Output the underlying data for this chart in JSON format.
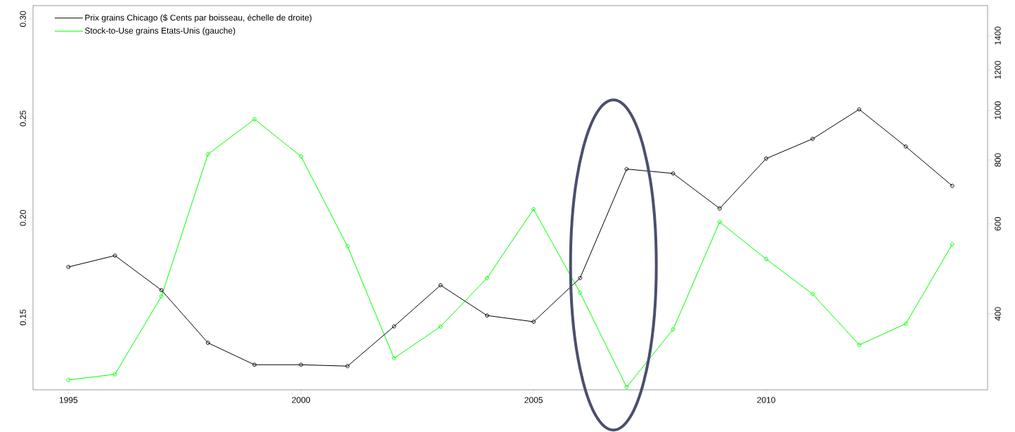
{
  "chart_data": {
    "type": "line",
    "x": [
      1995,
      1996,
      1997,
      1998,
      1999,
      2000,
      2001,
      2002,
      2003,
      2004,
      2005,
      2006,
      2007,
      2008,
      2009,
      2010,
      2011,
      2012,
      2013,
      2014
    ],
    "series": [
      {
        "name": "Prix grains Chicago ($ Cents par boisseau, échelle de droite)",
        "color": "#000000",
        "axis": "y2",
        "values": [
          494,
          520,
          445,
          351,
          318,
          318,
          316,
          378,
          455,
          397,
          386,
          470,
          768,
          753,
          643,
          805,
          880,
          1005,
          850,
          712
        ]
      },
      {
        "name": "Stock-to-Use grains Etats-Unis (gauche)",
        "color": "#00ff00",
        "values": [
          0.1186,
          0.1214,
          0.1606,
          0.232,
          0.2496,
          0.2309,
          0.1857,
          0.1295,
          0.1454,
          0.1698,
          0.2044,
          0.1624,
          0.115,
          0.144,
          0.198,
          0.1793,
          0.1617,
          0.1362,
          0.1468,
          0.1867
        ]
      }
    ],
    "xlim": [
      1994.24,
      2014.76
    ],
    "xticks": [
      1995,
      2000,
      2005,
      2010
    ],
    "ylim": [
      0.1136,
      0.3067
    ],
    "yticks": [
      {
        "value": 0.15,
        "label": "0.15"
      },
      {
        "value": 0.2,
        "label": "0.20"
      },
      {
        "value": 0.25,
        "label": "0.25"
      },
      {
        "value": 0.3,
        "label": "0.30"
      }
    ],
    "y2lim": [
      284,
      1604
    ],
    "y2ticks": [
      400,
      600,
      800,
      1000,
      1200,
      1400
    ],
    "log": "y2",
    "legend": "top left",
    "marker": "circle",
    "line_style": "solid"
  }
}
